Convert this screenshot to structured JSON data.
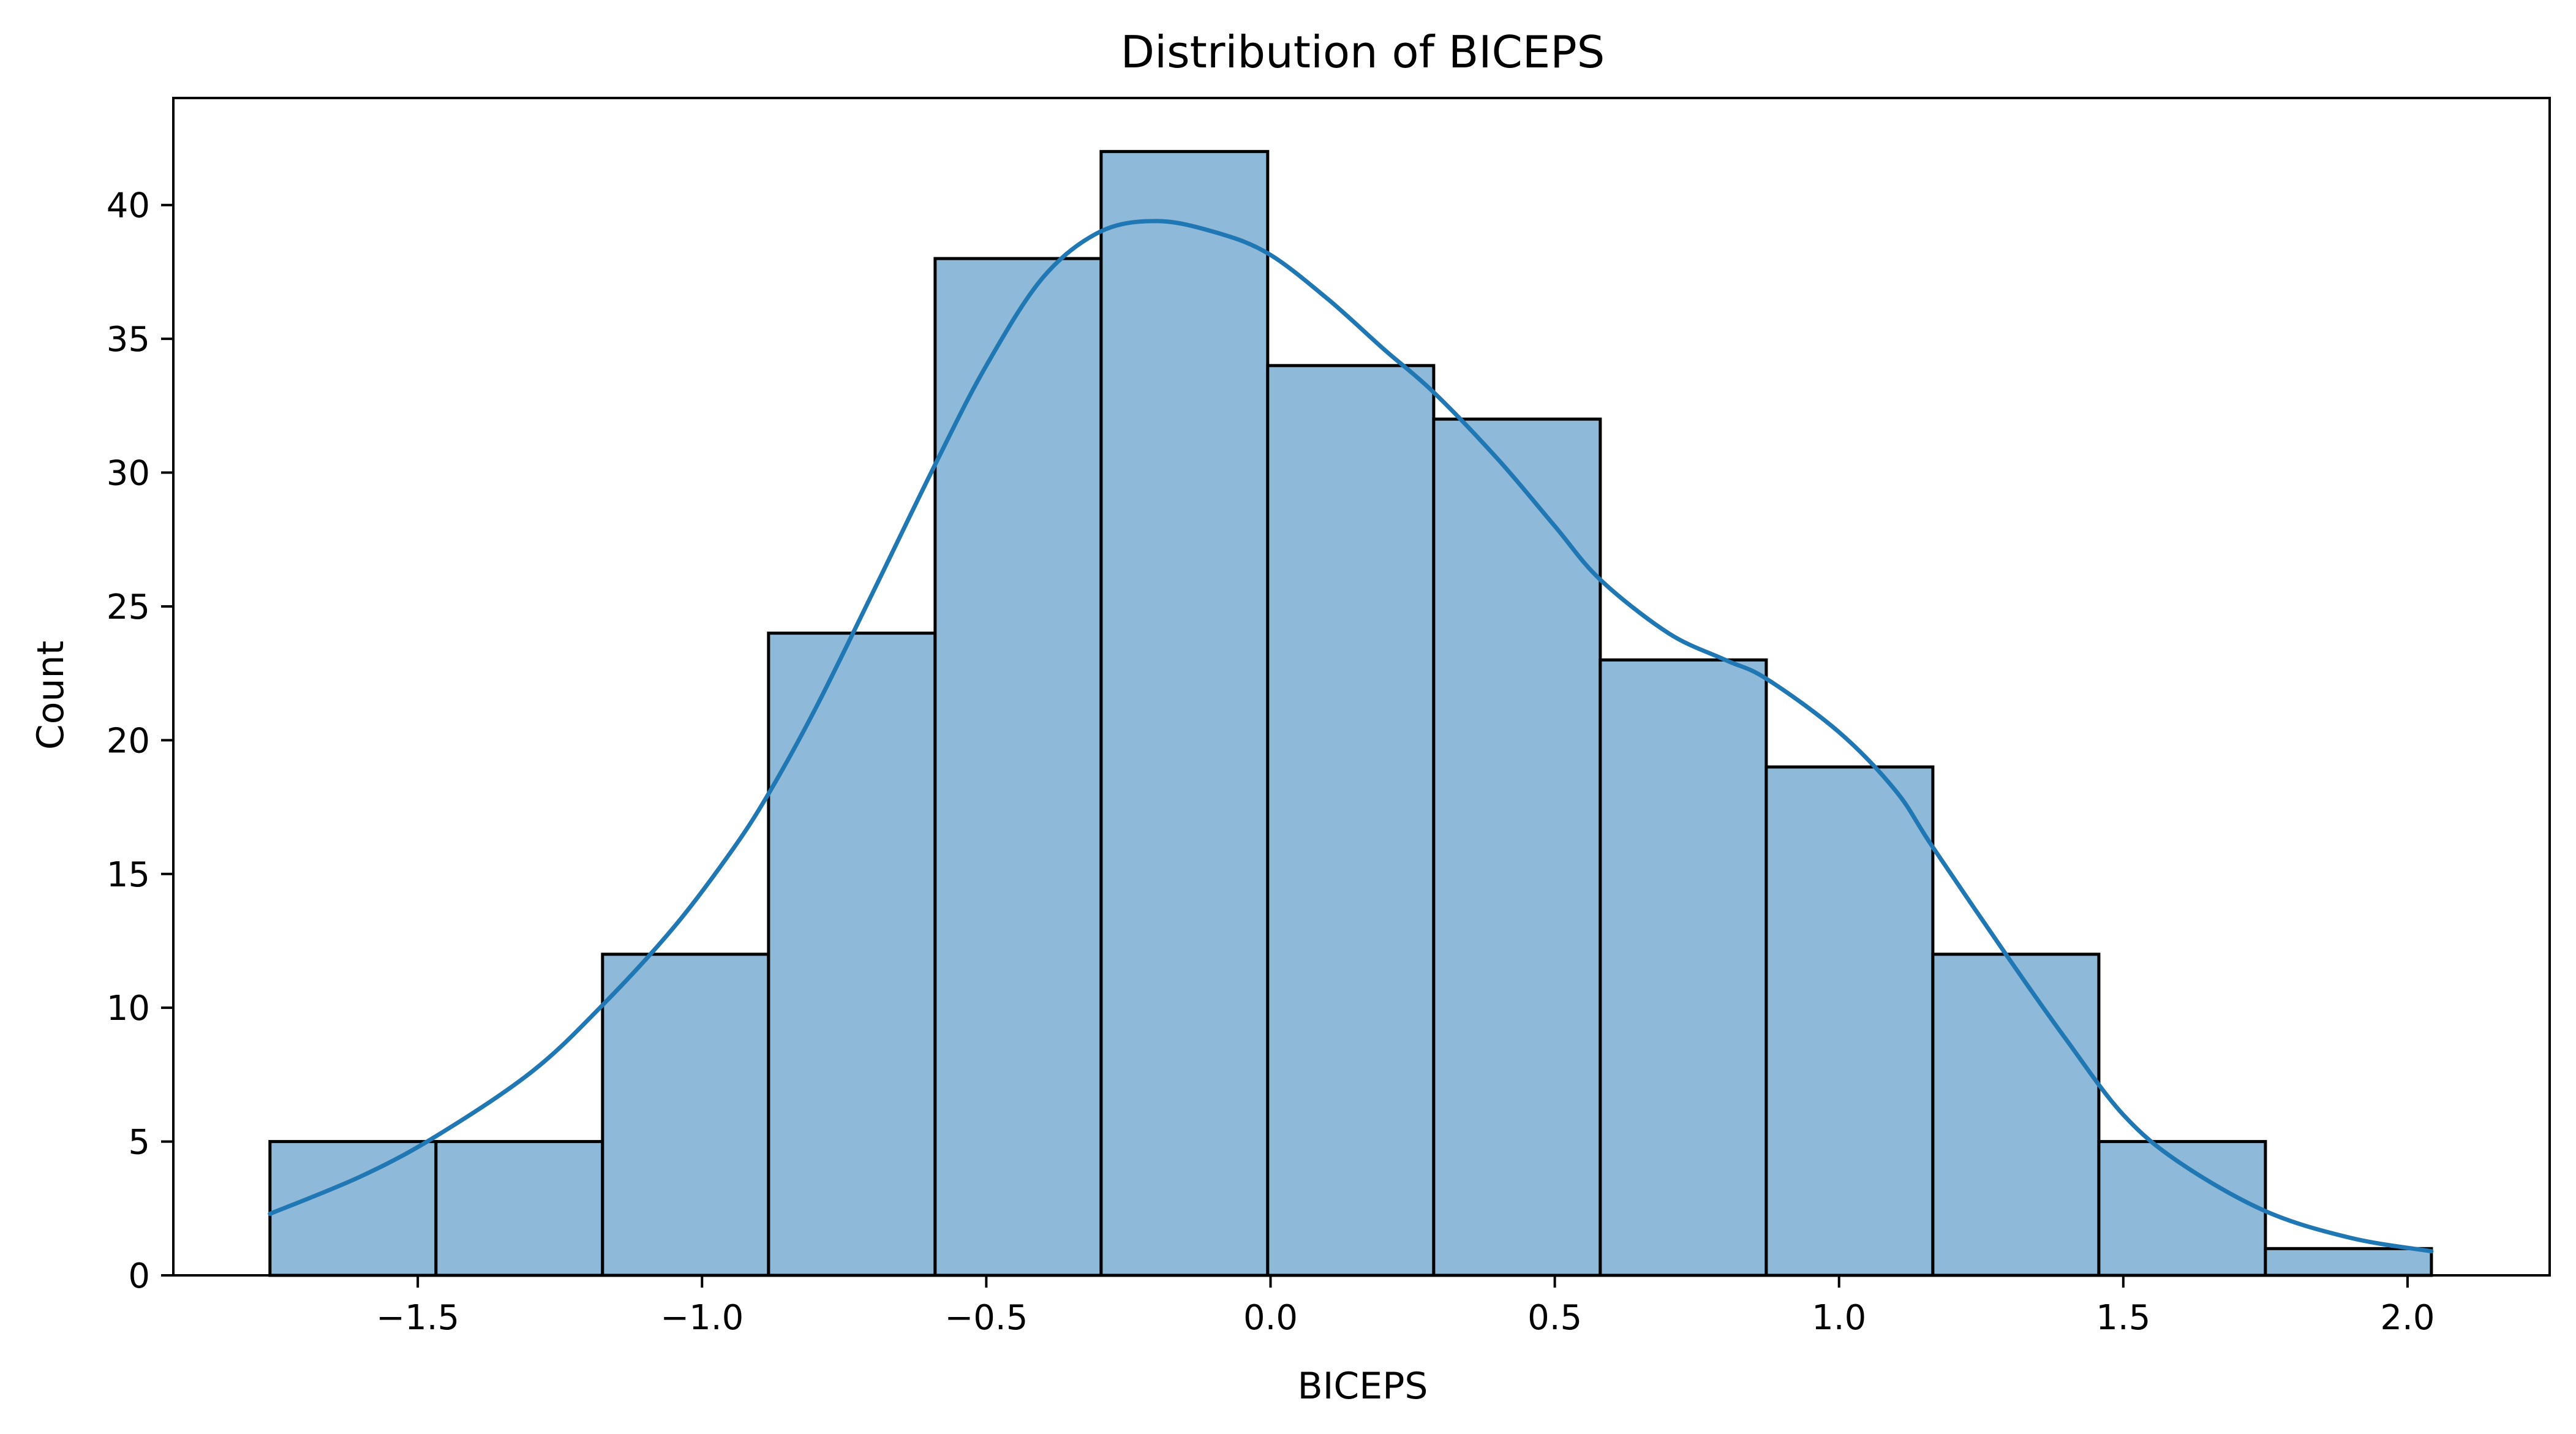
{
  "chart_data": {
    "type": "bar",
    "title": "Distribution of BICEPS",
    "xlabel": "BICEPS",
    "ylabel": "Count",
    "xlim": [
      -1.93,
      2.25
    ],
    "ylim": [
      0,
      44
    ],
    "grid": false,
    "legend": "none",
    "bin_edges": [
      -1.76,
      -1.468,
      -1.175,
      -0.883,
      -0.59,
      -0.298,
      -0.005,
      0.287,
      0.58,
      0.872,
      1.165,
      1.457,
      1.75,
      2.042
    ],
    "values": [
      5,
      5,
      12,
      24,
      38,
      42,
      34,
      32,
      23,
      19,
      12,
      5,
      1
    ],
    "xticks": [
      -1.5,
      -1.0,
      -0.5,
      0.0,
      0.5,
      1.0,
      1.5,
      2.0
    ],
    "xtick_labels": [
      "−1.5",
      "−1.0",
      "−0.5",
      "0.0",
      "0.5",
      "1.0",
      "1.5",
      "2.0"
    ],
    "yticks": [
      0,
      5,
      10,
      15,
      20,
      25,
      30,
      35,
      40
    ],
    "ytick_labels": [
      "0",
      "5",
      "10",
      "15",
      "20",
      "25",
      "30",
      "35",
      "40"
    ],
    "kde": {
      "x": [
        -1.76,
        -1.6,
        -1.468,
        -1.3,
        -1.175,
        -1.05,
        -0.95,
        -0.883,
        -0.8,
        -0.7,
        -0.59,
        -0.5,
        -0.4,
        -0.3,
        -0.2,
        -0.1,
        -0.005,
        0.1,
        0.2,
        0.287,
        0.4,
        0.5,
        0.58,
        0.7,
        0.8,
        0.872,
        1.0,
        1.1,
        1.165,
        1.3,
        1.4,
        1.5,
        1.6,
        1.75,
        1.9,
        2.042
      ],
      "y": [
        2.3,
        3.7,
        5.2,
        7.6,
        10.1,
        13.0,
        15.8,
        18.0,
        21.2,
        25.5,
        30.3,
        34.0,
        37.3,
        39.0,
        39.4,
        39.0,
        38.2,
        36.5,
        34.6,
        33.0,
        30.5,
        28.0,
        26.0,
        24.0,
        23.0,
        22.3,
        20.3,
        18.1,
        16.0,
        11.8,
        8.8,
        6.0,
        4.2,
        2.4,
        1.4,
        0.9
      ]
    },
    "colors": {
      "bar_fill": "#8fb9d9",
      "bar_edge": "#000000",
      "kde_line": "#1f77b4"
    }
  }
}
